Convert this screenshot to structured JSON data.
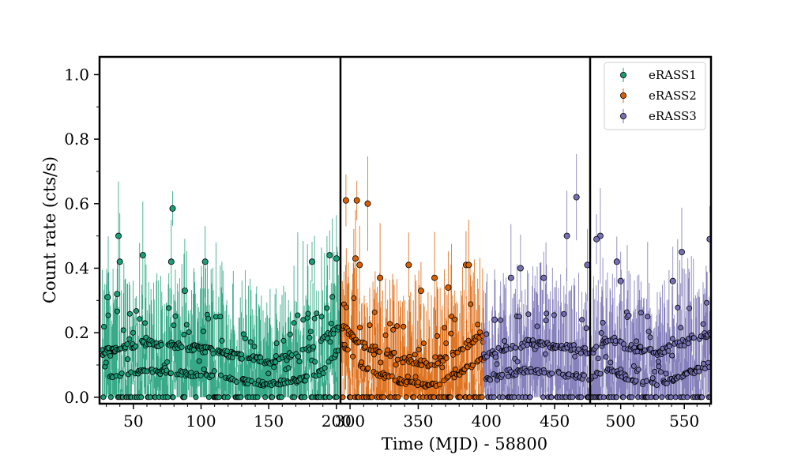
{
  "chart_data": {
    "type": "scatter",
    "title": "",
    "xlabel": "Time (MJD) - 58800",
    "ylabel": "Count rate (cts/s)",
    "ylim": [
      -0.02,
      1.055
    ],
    "yticks": [
      "0.0",
      "0.2",
      "0.4",
      "0.6",
      "0.8",
      "1.0"
    ],
    "ytick_values": [
      0.0,
      0.2,
      0.4,
      0.6,
      0.8,
      1.0
    ],
    "grid": false,
    "legend_position": "top-right",
    "panels": [
      {
        "xlim": [
          25,
          203
        ],
        "xticks": [
          "50",
          "100",
          "150",
          "200"
        ],
        "xtick_values": [
          50,
          100,
          150,
          200
        ]
      },
      {
        "xlim": [
          293,
          476
        ],
        "xticks": [
          "300",
          "350",
          "400",
          "450"
        ],
        "xtick_values": [
          300,
          350,
          400,
          450
        ]
      },
      {
        "xlim": [
          476,
          571
        ],
        "xticks": [
          "500",
          "550"
        ],
        "xtick_values": [
          500,
          550
        ]
      }
    ],
    "series": [
      {
        "name": "eRASS1",
        "color": "#1b9e77",
        "x_range": [
          27,
          202
        ],
        "upper_band": {
          "x": [
            27,
            60,
            100,
            150,
            175,
            190,
            202
          ],
          "y": [
            0.14,
            0.17,
            0.15,
            0.11,
            0.14,
            0.18,
            0.22
          ]
        },
        "lower_band": {
          "x": [
            27,
            60,
            100,
            150,
            175,
            190,
            202
          ],
          "y": [
            0.065,
            0.08,
            0.07,
            0.04,
            0.055,
            0.08,
            0.15
          ]
        },
        "outliers": [
          {
            "x": 39,
            "y": 0.5
          },
          {
            "x": 40,
            "y": 0.42
          },
          {
            "x": 57,
            "y": 0.44
          },
          {
            "x": 79,
            "y": 0.585
          },
          {
            "x": 78,
            "y": 0.42
          },
          {
            "x": 103,
            "y": 0.42
          },
          {
            "x": 31,
            "y": 0.31
          },
          {
            "x": 38,
            "y": 0.32
          },
          {
            "x": 88,
            "y": 0.33
          },
          {
            "x": 195,
            "y": 0.44
          },
          {
            "x": 182,
            "y": 0.42
          },
          {
            "x": 200,
            "y": 0.43
          }
        ]
      },
      {
        "name": "eRASS2",
        "color": "#d95f02",
        "x_range": [
          294,
          398
        ],
        "upper_band": {
          "x": [
            294,
            310,
            340,
            360,
            380,
            398
          ],
          "y": [
            0.22,
            0.16,
            0.12,
            0.1,
            0.15,
            0.2
          ]
        },
        "lower_band": {
          "x": [
            294,
            310,
            340,
            360,
            380,
            398
          ],
          "y": [
            0.17,
            0.09,
            0.045,
            0.035,
            0.075,
            0.12
          ]
        },
        "outliers": [
          {
            "x": 297,
            "y": 0.61
          },
          {
            "x": 305,
            "y": 0.61
          },
          {
            "x": 313,
            "y": 0.6
          },
          {
            "x": 304,
            "y": 0.43
          },
          {
            "x": 307,
            "y": 0.41
          },
          {
            "x": 343,
            "y": 0.41
          },
          {
            "x": 385,
            "y": 0.41
          },
          {
            "x": 387,
            "y": 0.41
          },
          {
            "x": 322,
            "y": 0.37
          },
          {
            "x": 362,
            "y": 0.37
          },
          {
            "x": 352,
            "y": 0.33
          },
          {
            "x": 372,
            "y": 0.34
          }
        ]
      },
      {
        "name": "eRASS3",
        "color": "#7570b3",
        "x_range": [
          398,
          571
        ],
        "upper_band": {
          "x": [
            398,
            430,
            450,
            476,
            490,
            510,
            530,
            550,
            571
          ],
          "y": [
            0.13,
            0.17,
            0.16,
            0.14,
            0.18,
            0.15,
            0.14,
            0.17,
            0.2
          ]
        },
        "lower_band": {
          "x": [
            398,
            430,
            450,
            476,
            490,
            510,
            530,
            550,
            571
          ],
          "y": [
            0.05,
            0.085,
            0.075,
            0.06,
            0.09,
            0.05,
            0.04,
            0.07,
            0.1
          ]
        },
        "outliers": [
          {
            "x": 466,
            "y": 0.62
          },
          {
            "x": 459,
            "y": 0.5
          },
          {
            "x": 484,
            "y": 0.5
          },
          {
            "x": 481,
            "y": 0.49
          },
          {
            "x": 497,
            "y": 0.42
          },
          {
            "x": 570,
            "y": 0.49
          },
          {
            "x": 548,
            "y": 0.45
          },
          {
            "x": 418,
            "y": 0.37
          },
          {
            "x": 442,
            "y": 0.37
          },
          {
            "x": 474,
            "y": 0.41
          },
          {
            "x": 500,
            "y": 0.36
          },
          {
            "x": 541,
            "y": 0.36
          },
          {
            "x": 406,
            "y": 0.24
          },
          {
            "x": 425,
            "y": 0.4
          }
        ]
      }
    ]
  }
}
